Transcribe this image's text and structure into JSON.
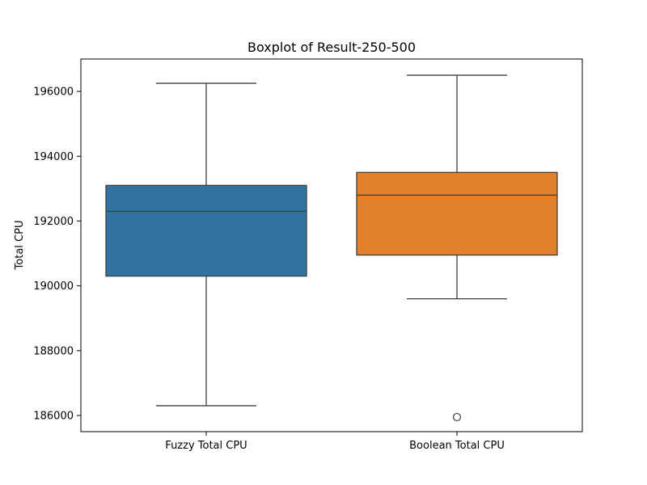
{
  "chart_data": {
    "type": "box",
    "title": "Boxplot of Result-250-500",
    "xlabel": "",
    "ylabel": "Total CPU",
    "ylim": [
      185500,
      197000
    ],
    "yticks": [
      186000,
      188000,
      190000,
      192000,
      194000,
      196000
    ],
    "ytick_labels": [
      "186000",
      "188000",
      "190000",
      "192000",
      "194000",
      "196000"
    ],
    "grid": false,
    "categories": [
      "Fuzzy Total CPU",
      "Boolean Total CPU"
    ],
    "boxes": [
      {
        "name": "Fuzzy Total CPU",
        "color": "#3274a1",
        "whisker_low": 186300,
        "q1": 190300,
        "median": 192300,
        "q3": 193100,
        "whisker_high": 196250,
        "outliers": []
      },
      {
        "name": "Boolean Total CPU",
        "color": "#e1812c",
        "whisker_low": 189600,
        "q1": 190950,
        "median": 192800,
        "q3": 193500,
        "whisker_high": 196500,
        "outliers": [
          185950
        ]
      }
    ]
  }
}
